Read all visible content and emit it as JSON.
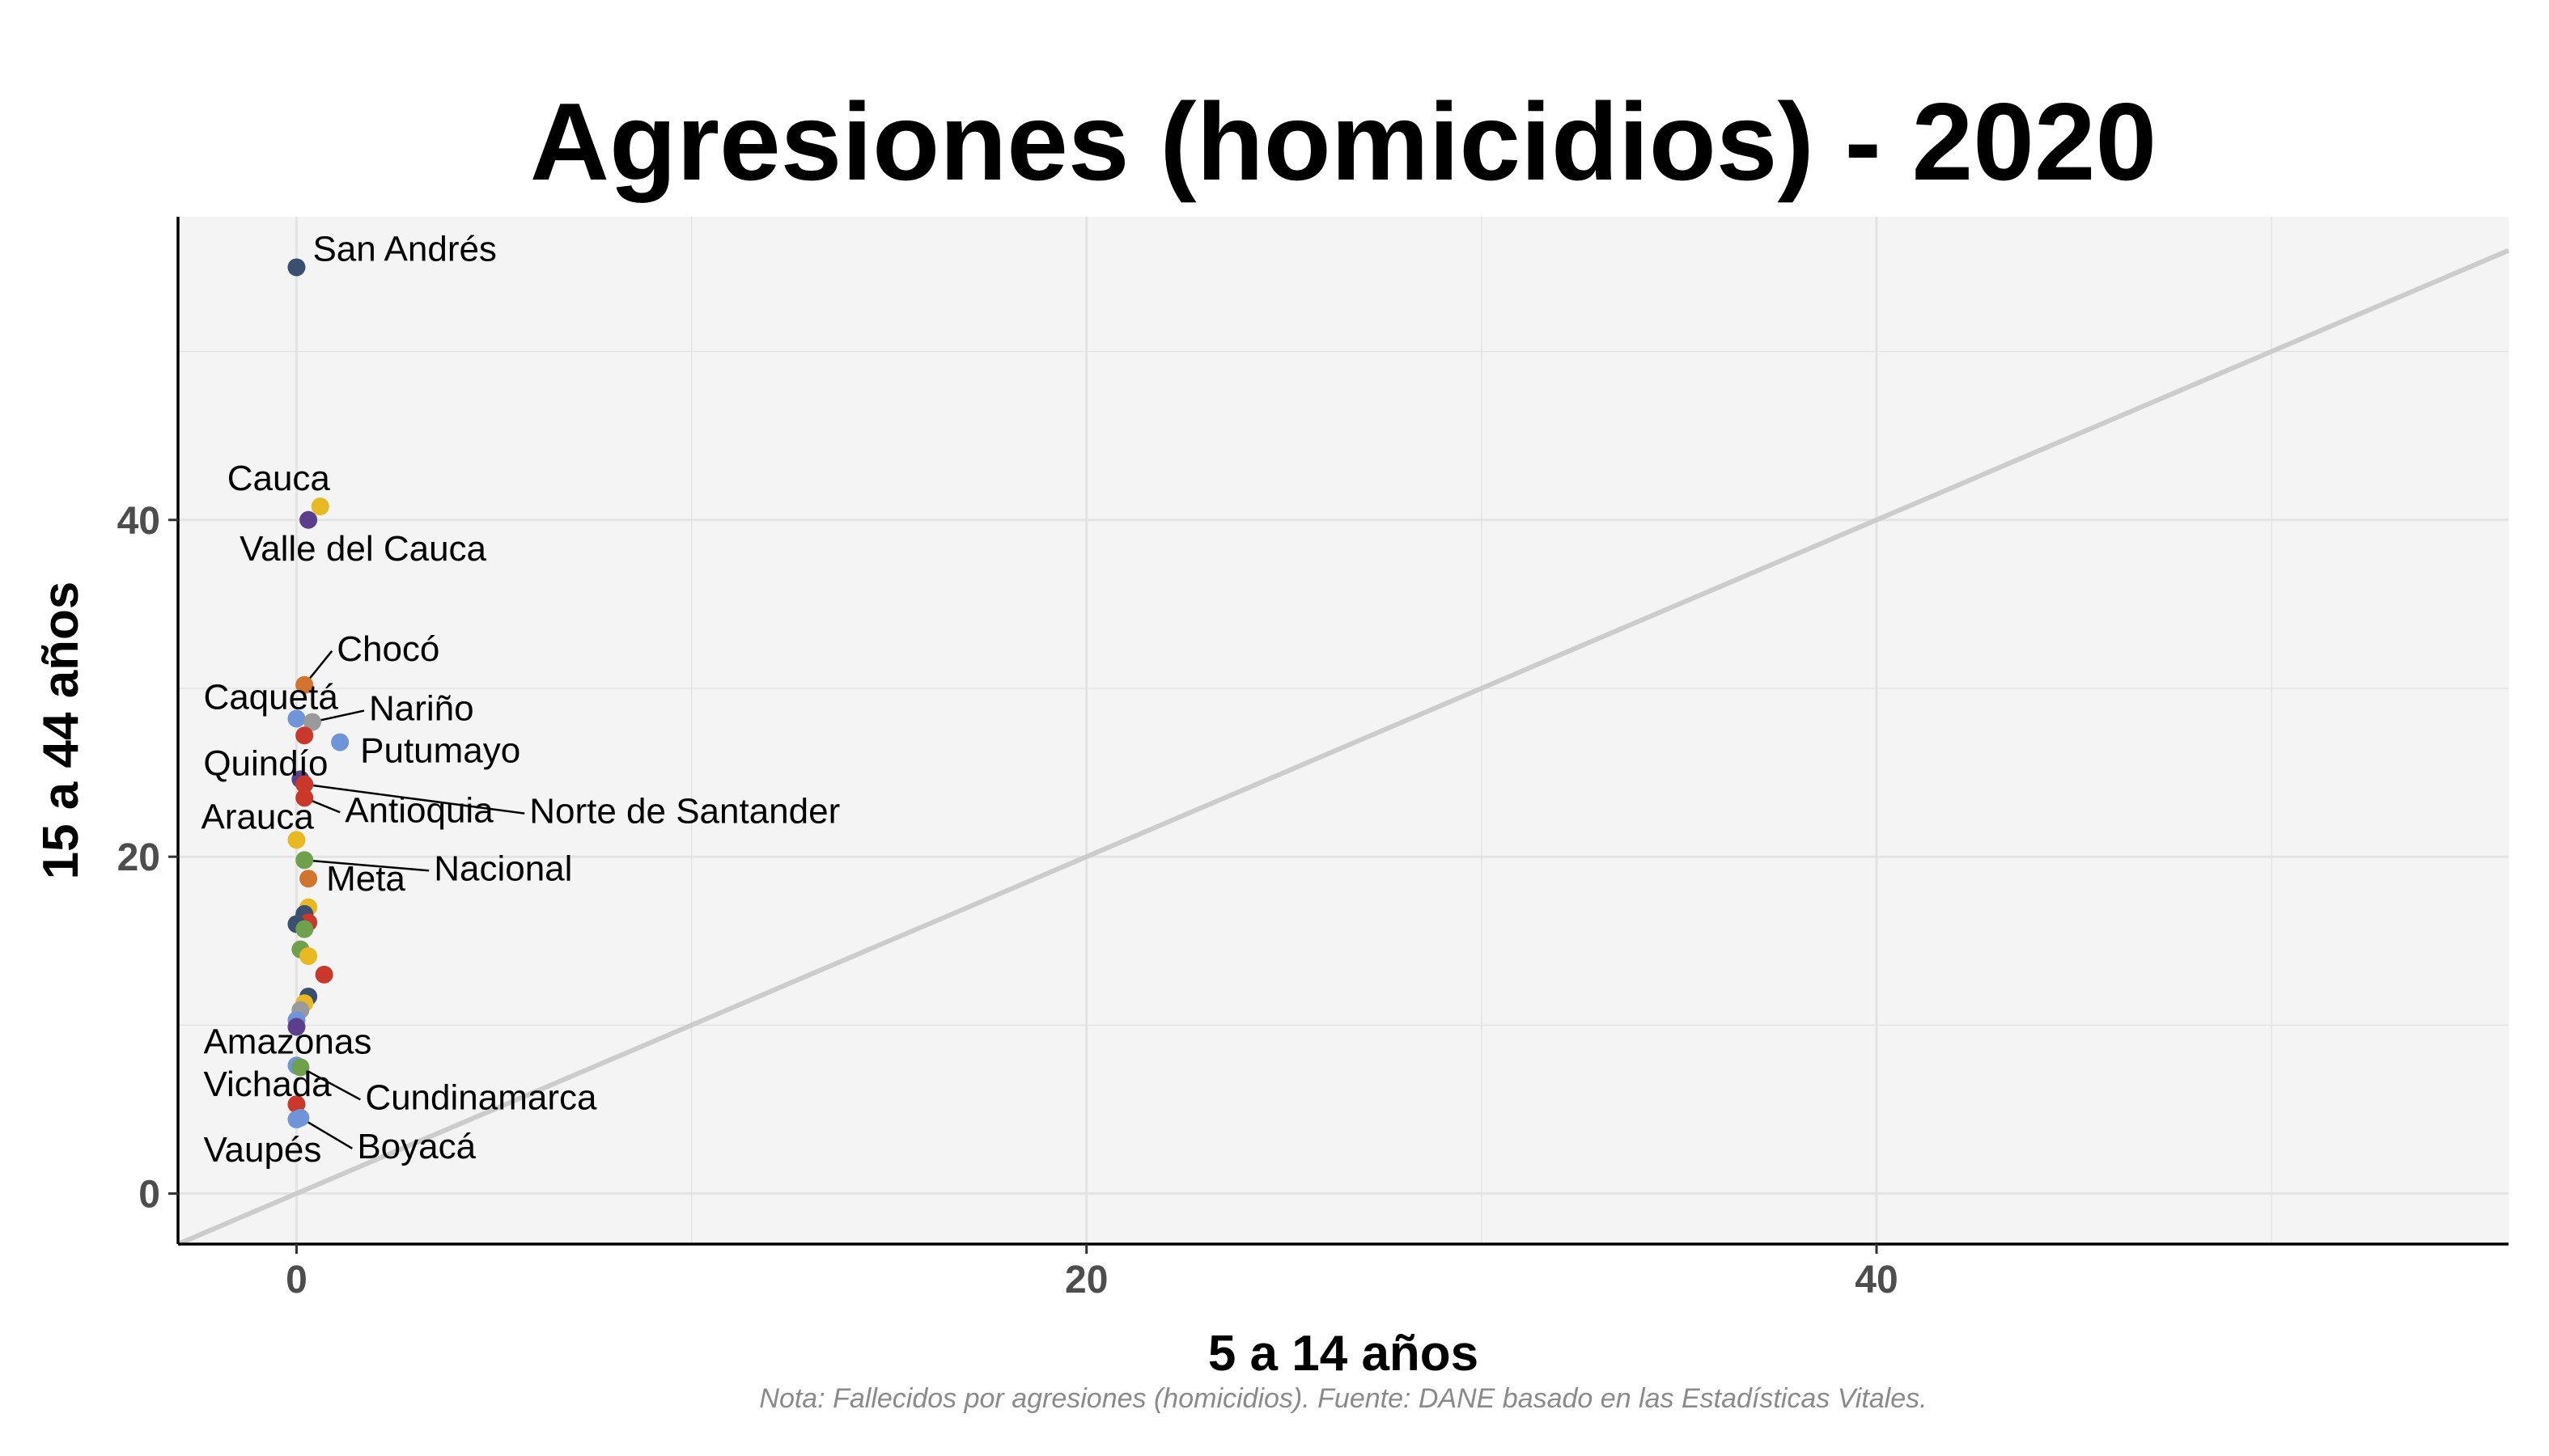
{
  "chart_data": {
    "type": "scatter",
    "title": "Agresiones (homicidios) - 2020",
    "xlabel": "5 a 14 años",
    "ylabel": "15 a 44 años",
    "xlim": [
      -3,
      56
    ],
    "ylim": [
      -3,
      58
    ],
    "x_ticks": [
      0,
      20,
      40
    ],
    "y_ticks": [
      0,
      20,
      40
    ],
    "grid": true,
    "legend": "none",
    "reference_line": {
      "type": "identity",
      "color": "#cccccc"
    },
    "caption": "Nota: Fallecidos por agresiones (homicidios). Fuente: DANE basado en las Estadísticas Vitales.",
    "points": [
      {
        "label": "San Andrés",
        "x": 0.0,
        "y": 55.0,
        "color": "#3b4f6e"
      },
      {
        "label": "Cauca",
        "x": 0.6,
        "y": 40.8,
        "color": "#e8b923"
      },
      {
        "label": "Valle del Cauca",
        "x": 0.3,
        "y": 40.0,
        "color": "#5b3f8c"
      },
      {
        "label": "Chocó",
        "x": 0.2,
        "y": 30.2,
        "color": "#d0742e"
      },
      {
        "label": "Caquetá",
        "x": 0.0,
        "y": 28.2,
        "color": "#6f94d8"
      },
      {
        "label": "Nariño",
        "x": 0.4,
        "y": 28.0,
        "color": "#9a9a9a"
      },
      {
        "label": "",
        "x": 0.2,
        "y": 27.2,
        "color": "#c9382b"
      },
      {
        "label": "Putumayo",
        "x": 1.1,
        "y": 26.8,
        "color": "#6f94d8"
      },
      {
        "label": "Quindío",
        "x": 0.1,
        "y": 24.6,
        "color": "#5b3f8c"
      },
      {
        "label": "Norte de Santander",
        "x": 0.2,
        "y": 24.3,
        "color": "#c9382b"
      },
      {
        "label": "Antioquia",
        "x": 0.2,
        "y": 23.5,
        "color": "#c9382b"
      },
      {
        "label": "Arauca",
        "x": 0.0,
        "y": 21.0,
        "color": "#e8b923"
      },
      {
        "label": "Nacional",
        "x": 0.2,
        "y": 19.8,
        "color": "#6fa04b"
      },
      {
        "label": "Meta",
        "x": 0.3,
        "y": 18.7,
        "color": "#d0742e"
      },
      {
        "label": "",
        "x": 0.3,
        "y": 17.0,
        "color": "#e8b923"
      },
      {
        "label": "",
        "x": 0.2,
        "y": 16.6,
        "color": "#3b4f6e"
      },
      {
        "label": "",
        "x": 0.3,
        "y": 16.1,
        "color": "#c9382b"
      },
      {
        "label": "",
        "x": 0.0,
        "y": 16.0,
        "color": "#3b4f6e"
      },
      {
        "label": "",
        "x": 0.2,
        "y": 15.7,
        "color": "#6fa04b"
      },
      {
        "label": "",
        "x": 0.1,
        "y": 14.5,
        "color": "#6fa04b"
      },
      {
        "label": "",
        "x": 0.3,
        "y": 14.1,
        "color": "#e8b923"
      },
      {
        "label": "",
        "x": 0.7,
        "y": 13.0,
        "color": "#c9382b"
      },
      {
        "label": "",
        "x": 0.3,
        "y": 11.7,
        "color": "#3b4f6e"
      },
      {
        "label": "",
        "x": 0.2,
        "y": 11.3,
        "color": "#e8b923"
      },
      {
        "label": "",
        "x": 0.1,
        "y": 10.9,
        "color": "#9a9a9a"
      },
      {
        "label": "",
        "x": 0.0,
        "y": 10.3,
        "color": "#6f94d8"
      },
      {
        "label": "",
        "x": 0.0,
        "y": 9.9,
        "color": "#5b3f8c"
      },
      {
        "label": "Amazonas",
        "x": 0.0,
        "y": 7.6,
        "color": "#6f94d8"
      },
      {
        "label": "Cundinamarca",
        "x": 0.1,
        "y": 7.5,
        "color": "#6fa04b"
      },
      {
        "label": "Vichada",
        "x": 0.0,
        "y": 5.3,
        "color": "#c9382b"
      },
      {
        "label": "Boyacá",
        "x": 0.1,
        "y": 4.5,
        "color": "#6f94d8"
      },
      {
        "label": "Vaupés",
        "x": 0.0,
        "y": 4.4,
        "color": "#6f94d8"
      }
    ]
  }
}
